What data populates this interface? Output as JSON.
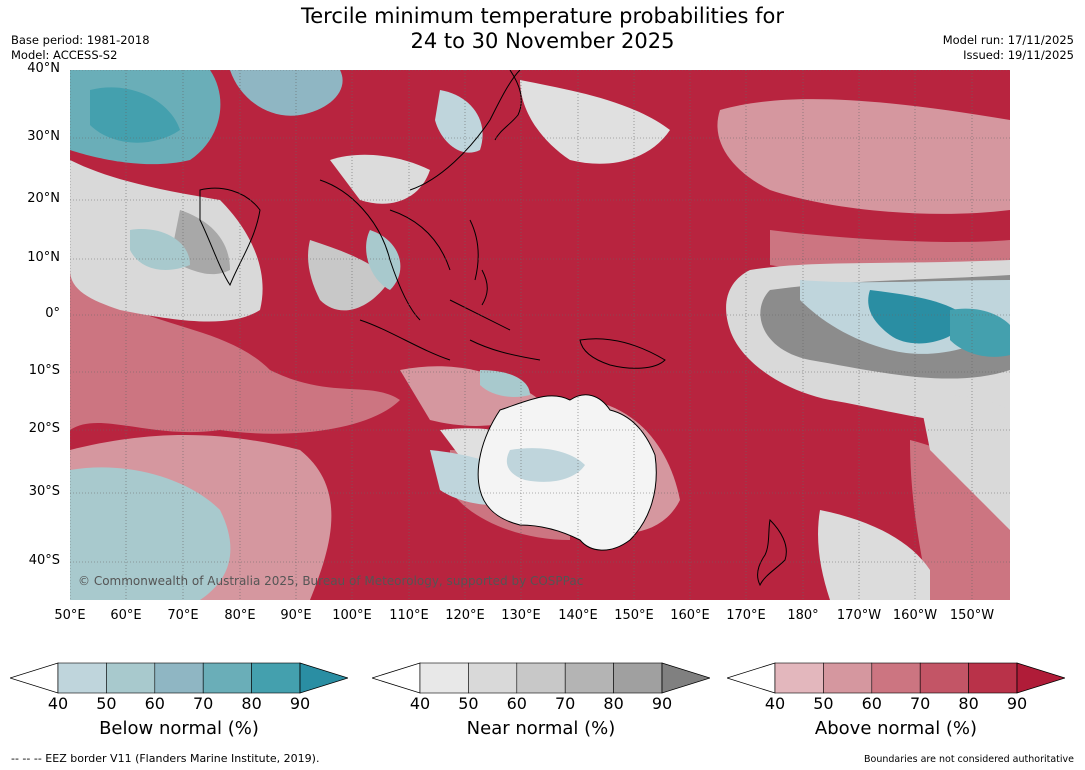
{
  "title_line1": "Tercile minimum temperature probabilities for",
  "title_line2": "24 to 30 November 2025",
  "base_period": "Base period: 1981-2018",
  "model": "Model: ACCESS-S2",
  "model_run": "Model run: 17/11/2025",
  "issued": "Issued: 19/11/2025",
  "copyright": "© Commonwealth of Australia 2025, Bureau of Meteorology, supported by COSPPac",
  "lat_labels": [
    "40°N",
    "30°N",
    "20°N",
    "10°N",
    "0°",
    "10°S",
    "20°S",
    "30°S",
    "40°S"
  ],
  "lon_labels": [
    "50°E",
    "60°E",
    "70°E",
    "80°E",
    "90°E",
    "100°E",
    "110°E",
    "120°E",
    "130°E",
    "140°E",
    "150°E",
    "160°E",
    "170°E",
    "180°",
    "170°W",
    "160°W",
    "150°W"
  ],
  "colorbars": [
    {
      "label": "Below normal (%)",
      "ticks": [
        "40",
        "50",
        "60",
        "70",
        "80",
        "90"
      ],
      "colors": [
        "#bfd5dc",
        "#a8c9cd",
        "#8fb6c3",
        "#6aaeb8",
        "#44a0ae",
        "#2a8ea3"
      ]
    },
    {
      "label": "Near normal (%)",
      "ticks": [
        "40",
        "50",
        "60",
        "70",
        "80",
        "90"
      ],
      "colors": [
        "#e8e8e8",
        "#d9d9d9",
        "#c8c8c8",
        "#b4b4b4",
        "#a0a0a0",
        "#808080"
      ]
    },
    {
      "label": "Above normal (%)",
      "ticks": [
        "40",
        "50",
        "60",
        "70",
        "80",
        "90"
      ],
      "colors": [
        "#e3b7bd",
        "#d5979f",
        "#cc7581",
        "#c35566",
        "#b93249",
        "#b01c38"
      ]
    }
  ],
  "footer_left": "--  --  -- EEZ border V11 (Flanders Marine Institute, 2019).",
  "footer_right": "Boundaries are not considered authoritative",
  "colors": {
    "above_strong": "#b01c38",
    "above_mid": "#cc7581",
    "above_light": "#e3b7bd",
    "below_strong": "#2a8ea3",
    "below_light": "#bfd5dc",
    "near_light": "#dcdcdc",
    "near_dark": "#8a8a8a"
  }
}
